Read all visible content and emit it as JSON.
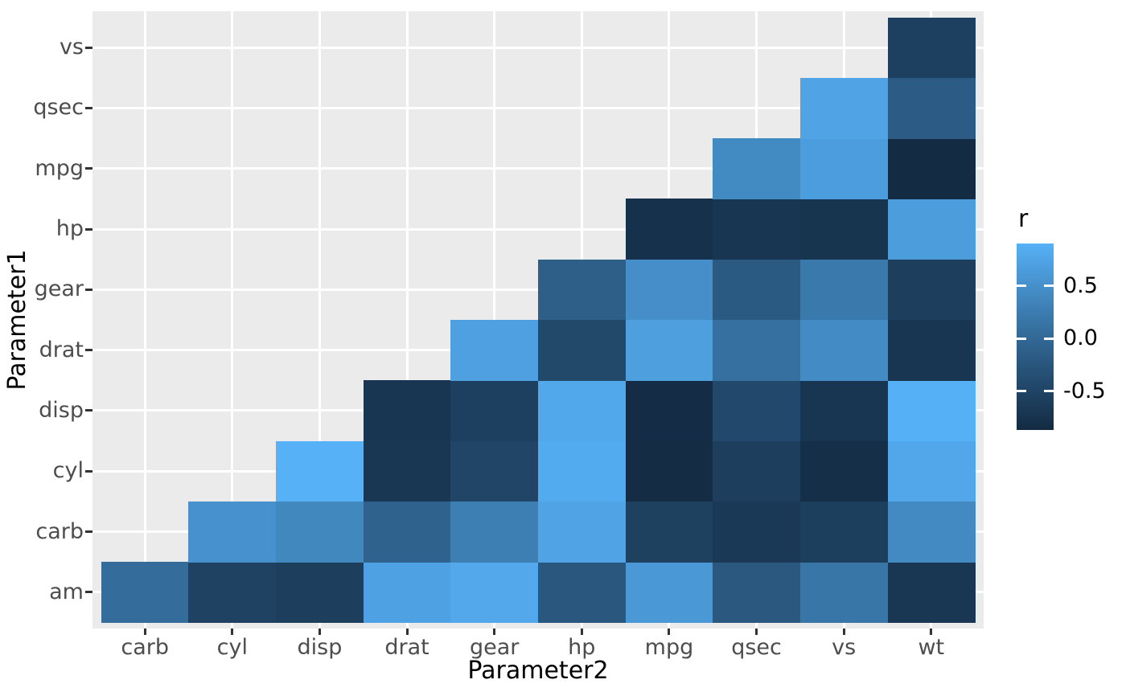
{
  "chart_data": {
    "type": "heatmap",
    "title": "",
    "xlabel": "Parameter2",
    "ylabel": "Parameter1",
    "x_categories": [
      "carb",
      "cyl",
      "disp",
      "drat",
      "gear",
      "hp",
      "mpg",
      "qsec",
      "vs",
      "wt"
    ],
    "y_categories_bottom_to_top": [
      "am",
      "carb",
      "cyl",
      "disp",
      "drat",
      "gear",
      "hp",
      "mpg",
      "qsec",
      "vs"
    ],
    "panel_background": "#EBEBEB",
    "gridline_color": "#FFFFFF",
    "grid": "major-on",
    "legend": {
      "title": "r",
      "position": "right",
      "tick_labels": [
        "0.5",
        "0.0",
        "-0.5"
      ],
      "tick_values": [
        0.5,
        0.0,
        -0.5
      ],
      "limits": [
        -0.868,
        0.902
      ],
      "low_color": "#132B43",
      "high_color": "#56B1F7",
      "interpolation": "Lab"
    },
    "cells": [
      {
        "p1": "am",
        "p2": "carb",
        "r": 0.058
      },
      {
        "p1": "am",
        "p2": "cyl",
        "r": -0.523
      },
      {
        "p1": "am",
        "p2": "disp",
        "r": -0.591
      },
      {
        "p1": "am",
        "p2": "drat",
        "r": 0.713
      },
      {
        "p1": "am",
        "p2": "gear",
        "r": 0.794
      },
      {
        "p1": "am",
        "p2": "hp",
        "r": -0.243
      },
      {
        "p1": "am",
        "p2": "mpg",
        "r": 0.6
      },
      {
        "p1": "am",
        "p2": "qsec",
        "r": -0.23
      },
      {
        "p1": "am",
        "p2": "vs",
        "r": 0.168
      },
      {
        "p1": "am",
        "p2": "wt",
        "r": -0.692
      },
      {
        "p1": "carb",
        "p2": "cyl",
        "r": 0.527
      },
      {
        "p1": "carb",
        "p2": "disp",
        "r": 0.395
      },
      {
        "p1": "carb",
        "p2": "drat",
        "r": -0.091
      },
      {
        "p1": "carb",
        "p2": "gear",
        "r": 0.274
      },
      {
        "p1": "carb",
        "p2": "hp",
        "r": 0.75
      },
      {
        "p1": "carb",
        "p2": "mpg",
        "r": -0.551
      },
      {
        "p1": "carb",
        "p2": "qsec",
        "r": -0.656
      },
      {
        "p1": "carb",
        "p2": "vs",
        "r": -0.57
      },
      {
        "p1": "carb",
        "p2": "wt",
        "r": 0.428
      },
      {
        "p1": "cyl",
        "p2": "disp",
        "r": 0.902
      },
      {
        "p1": "cyl",
        "p2": "drat",
        "r": -0.7
      },
      {
        "p1": "cyl",
        "p2": "gear",
        "r": -0.493
      },
      {
        "p1": "cyl",
        "p2": "hp",
        "r": 0.832
      },
      {
        "p1": "cyl",
        "p2": "mpg",
        "r": -0.852
      },
      {
        "p1": "cyl",
        "p2": "qsec",
        "r": -0.591
      },
      {
        "p1": "cyl",
        "p2": "vs",
        "r": -0.811
      },
      {
        "p1": "cyl",
        "p2": "wt",
        "r": 0.782
      },
      {
        "p1": "disp",
        "p2": "drat",
        "r": -0.71
      },
      {
        "p1": "disp",
        "p2": "gear",
        "r": -0.556
      },
      {
        "p1": "disp",
        "p2": "hp",
        "r": 0.791
      },
      {
        "p1": "disp",
        "p2": "mpg",
        "r": -0.848
      },
      {
        "p1": "disp",
        "p2": "qsec",
        "r": -0.434
      },
      {
        "p1": "disp",
        "p2": "vs",
        "r": -0.71
      },
      {
        "p1": "disp",
        "p2": "wt",
        "r": 0.888
      },
      {
        "p1": "drat",
        "p2": "gear",
        "r": 0.7
      },
      {
        "p1": "drat",
        "p2": "hp",
        "r": -0.449
      },
      {
        "p1": "drat",
        "p2": "mpg",
        "r": 0.681
      },
      {
        "p1": "drat",
        "p2": "qsec",
        "r": 0.091
      },
      {
        "p1": "drat",
        "p2": "vs",
        "r": 0.44
      },
      {
        "p1": "drat",
        "p2": "wt",
        "r": -0.712
      },
      {
        "p1": "gear",
        "p2": "hp",
        "r": -0.126
      },
      {
        "p1": "gear",
        "p2": "mpg",
        "r": 0.48
      },
      {
        "p1": "gear",
        "p2": "qsec",
        "r": -0.213
      },
      {
        "p1": "gear",
        "p2": "vs",
        "r": 0.206
      },
      {
        "p1": "gear",
        "p2": "wt",
        "r": -0.583
      },
      {
        "p1": "hp",
        "p2": "mpg",
        "r": -0.776
      },
      {
        "p1": "hp",
        "p2": "qsec",
        "r": -0.708
      },
      {
        "p1": "hp",
        "p2": "vs",
        "r": -0.723
      },
      {
        "p1": "hp",
        "p2": "wt",
        "r": 0.659
      },
      {
        "p1": "mpg",
        "p2": "qsec",
        "r": 0.419
      },
      {
        "p1": "mpg",
        "p2": "vs",
        "r": 0.664
      },
      {
        "p1": "mpg",
        "p2": "wt",
        "r": -0.868
      },
      {
        "p1": "qsec",
        "p2": "vs",
        "r": 0.745
      },
      {
        "p1": "qsec",
        "p2": "wt",
        "r": -0.175
      },
      {
        "p1": "vs",
        "p2": "wt",
        "r": -0.555
      }
    ]
  }
}
